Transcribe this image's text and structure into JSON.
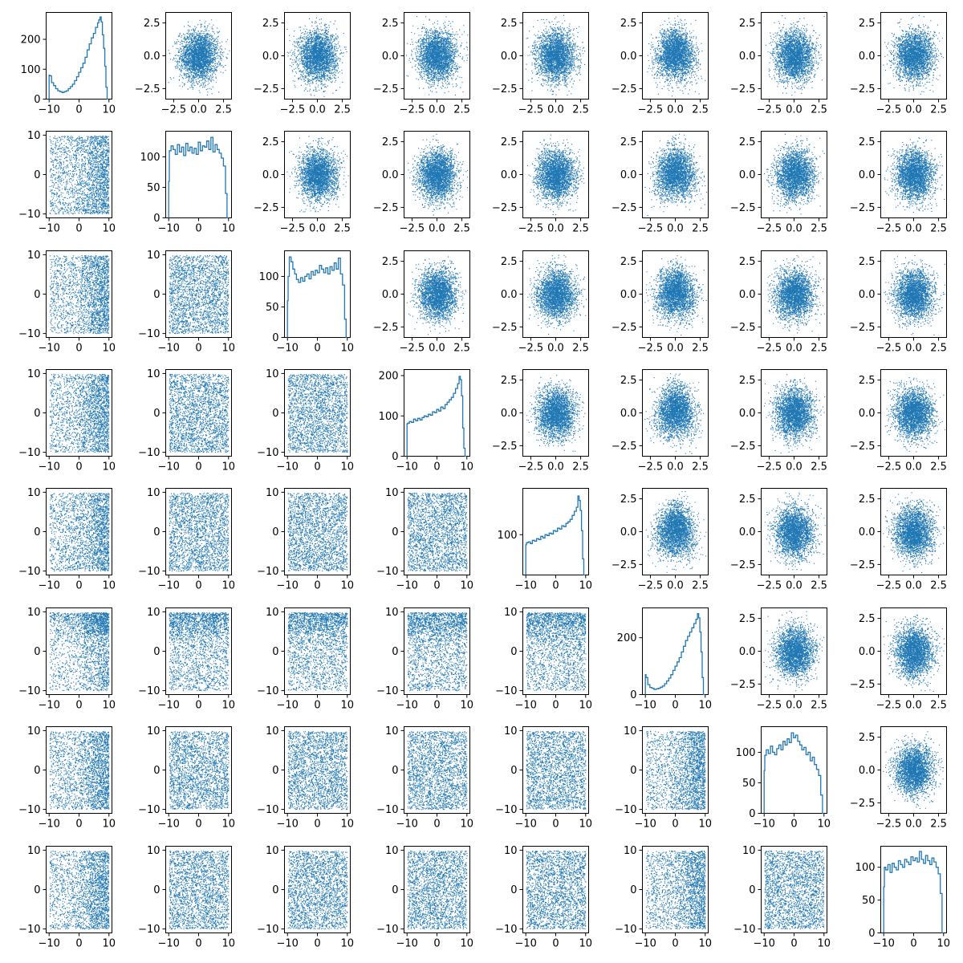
{
  "colors": {
    "series": "#1f77b4",
    "axes": "#000000",
    "background": "#ffffff"
  },
  "chart_data": {
    "type": "pair-grid",
    "grid": {
      "rows": 8,
      "cols": 8
    },
    "panel_types": {
      "diagonal": "histogram (step line)",
      "upper_triangle": "scatter of standard-normal draws (~10000 points each, dense point cloud)",
      "lower_triangle": "scatter of uniform draws over [-10, 10] x [-10, 10] (~10000 points each)"
    },
    "uniform_axis": {
      "range": [
        -11,
        11
      ],
      "ticks": [
        -10,
        0,
        10
      ],
      "tick_labels": [
        "−10",
        "0",
        "10"
      ]
    },
    "normal_axis": {
      "range": [
        -3.3,
        3.3
      ],
      "ticks": [
        -2.5,
        0.0,
        2.5
      ],
      "x_tick_labels": [
        "−2.5",
        "0.0",
        "2.5"
      ],
      "y_tick_labels": [
        "−2.5",
        "0.0",
        "2.5"
      ]
    },
    "diagonal_histograms": [
      {
        "panel": "0,0",
        "ylim": [
          0,
          290
        ],
        "yticks": [
          0,
          100,
          200
        ],
        "ytick_labels": [
          "0",
          "100",
          "200"
        ],
        "bins_x": [
          -9.8,
          -9.2,
          -8.5,
          -7.8,
          -7.1,
          -6.4,
          -5.7,
          -5.0,
          -4.3,
          -3.6,
          -2.9,
          -2.2,
          -1.5,
          -0.8,
          -0.1,
          0.6,
          1.3,
          2.0,
          2.7,
          3.4,
          4.1,
          4.8,
          5.5,
          6.2,
          6.6,
          7.0,
          7.4,
          7.8,
          8.2,
          8.6,
          9.0,
          9.4,
          9.8
        ],
        "counts": [
          80,
          78,
          55,
          45,
          35,
          28,
          25,
          22,
          25,
          28,
          35,
          42,
          50,
          62,
          75,
          90,
          105,
          120,
          140,
          165,
          185,
          205,
          220,
          240,
          255,
          265,
          275,
          258,
          215,
          170,
          110,
          40,
          0
        ]
      },
      {
        "panel": "1,1",
        "ylim": [
          0,
          142
        ],
        "yticks": [
          0,
          50,
          100
        ],
        "ytick_labels": [
          "0",
          "50",
          "100"
        ],
        "bins_x": [
          -9.8,
          -9.2,
          -8.5,
          -7.8,
          -7.1,
          -6.4,
          -5.7,
          -5.0,
          -4.3,
          -3.6,
          -2.9,
          -2.2,
          -1.5,
          -0.8,
          -0.1,
          0.6,
          1.3,
          2.0,
          2.7,
          3.4,
          4.1,
          4.8,
          5.5,
          6.2,
          6.9,
          7.6,
          8.3,
          9.0,
          9.5,
          9.9
        ],
        "counts": [
          60,
          110,
          118,
          112,
          104,
          120,
          108,
          116,
          102,
          122,
          110,
          116,
          106,
          114,
          104,
          124,
          110,
          118,
          116,
          126,
          112,
          132,
          108,
          120,
          112,
          106,
          98,
          85,
          40,
          0
        ]
      },
      {
        "panel": "2,2",
        "ylim": [
          0,
          142
        ],
        "yticks": [
          0,
          50,
          100
        ],
        "ytick_labels": [
          "0",
          "50",
          "100"
        ],
        "bins_x": [
          -9.8,
          -9.4,
          -8.8,
          -8.2,
          -7.6,
          -7.0,
          -6.3,
          -5.6,
          -4.9,
          -4.2,
          -3.5,
          -2.8,
          -2.1,
          -1.4,
          -0.7,
          0.0,
          0.7,
          1.4,
          2.1,
          2.8,
          3.5,
          4.2,
          4.9,
          5.6,
          6.3,
          7.0,
          7.7,
          8.4,
          9.1,
          9.6,
          9.9
        ],
        "counts": [
          60,
          100,
          132,
          124,
          112,
          104,
          95,
          90,
          98,
          92,
          100,
          104,
          96,
          108,
          102,
          110,
          106,
          118,
          112,
          106,
          114,
          104,
          116,
          110,
          122,
          112,
          130,
          104,
          86,
          30,
          0
        ]
      },
      {
        "panel": "3,3",
        "ylim": [
          0,
          215
        ],
        "yticks": [
          0,
          100,
          200
        ],
        "ytick_labels": [
          "0",
          "100",
          "200"
        ],
        "bins_x": [
          -9.8,
          -9.2,
          -8.5,
          -7.8,
          -7.1,
          -6.4,
          -5.7,
          -5.0,
          -4.3,
          -3.6,
          -2.9,
          -2.2,
          -1.5,
          -0.8,
          -0.1,
          0.6,
          1.3,
          2.0,
          2.7,
          3.4,
          4.1,
          4.8,
          5.5,
          6.2,
          6.9,
          7.4,
          7.8,
          8.2,
          8.6,
          9.0,
          9.4,
          9.9
        ],
        "counts": [
          80,
          82,
          86,
          84,
          92,
          88,
          94,
          90,
          96,
          100,
          98,
          104,
          102,
          110,
          108,
          116,
          112,
          122,
          118,
          128,
          134,
          140,
          146,
          156,
          168,
          180,
          198,
          190,
          150,
          70,
          20,
          0
        ]
      },
      {
        "panel": "4,4",
        "ylim": [
          0,
          215
        ],
        "yticks": [
          100
        ],
        "ytick_labels": [
          "100"
        ],
        "bins_x": [
          -9.8,
          -9.2,
          -8.5,
          -7.8,
          -7.1,
          -6.4,
          -5.7,
          -5.0,
          -4.3,
          -3.6,
          -2.9,
          -2.2,
          -1.5,
          -0.8,
          -0.1,
          0.6,
          1.3,
          2.0,
          2.7,
          3.4,
          4.1,
          4.8,
          5.5,
          6.2,
          6.9,
          7.4,
          7.8,
          8.2,
          8.6,
          9.0,
          9.4,
          9.9
        ],
        "counts": [
          75,
          80,
          82,
          78,
          86,
          84,
          90,
          88,
          96,
          92,
          100,
          98,
          104,
          102,
          110,
          108,
          116,
          114,
          122,
          120,
          128,
          132,
          138,
          148,
          158,
          168,
          196,
          185,
          160,
          110,
          40,
          0
        ]
      },
      {
        "panel": "5,5",
        "ylim": [
          0,
          305
        ],
        "yticks": [
          0,
          200
        ],
        "ytick_labels": [
          "0",
          "200"
        ],
        "bins_x": [
          -9.8,
          -9.2,
          -8.5,
          -7.8,
          -7.1,
          -6.4,
          -5.7,
          -5.0,
          -4.3,
          -3.6,
          -2.9,
          -2.2,
          -1.5,
          -0.8,
          -0.1,
          0.6,
          1.3,
          2.0,
          2.7,
          3.4,
          4.1,
          4.8,
          5.5,
          6.2,
          6.9,
          7.4,
          7.8,
          8.2,
          8.6,
          9.0,
          9.4,
          9.9
        ],
        "counts": [
          70,
          60,
          35,
          25,
          22,
          18,
          20,
          22,
          26,
          30,
          38,
          48,
          58,
          70,
          85,
          100,
          115,
          130,
          150,
          170,
          190,
          205,
          220,
          235,
          250,
          265,
          285,
          270,
          220,
          150,
          60,
          0
        ]
      },
      {
        "panel": "6,6",
        "ylim": [
          0,
          142
        ],
        "yticks": [
          0,
          50,
          100
        ],
        "ytick_labels": [
          "0",
          "50",
          "100"
        ],
        "bins_x": [
          -9.8,
          -9.3,
          -8.6,
          -7.9,
          -7.2,
          -6.5,
          -5.8,
          -5.1,
          -4.4,
          -3.7,
          -3.0,
          -2.3,
          -1.6,
          -0.9,
          -0.2,
          0.5,
          1.2,
          1.9,
          2.6,
          3.3,
          4.0,
          4.7,
          5.4,
          6.1,
          6.8,
          7.5,
          8.2,
          8.9,
          9.5,
          9.9
        ],
        "counts": [
          70,
          95,
          104,
          98,
          110,
          100,
          96,
          106,
          112,
          104,
          118,
          112,
          122,
          116,
          132,
          124,
          128,
          118,
          112,
          104,
          108,
          96,
          100,
          86,
          92,
          80,
          72,
          62,
          30,
          0
        ]
      },
      {
        "panel": "7,7",
        "ylim": [
          0,
          132
        ],
        "yticks": [
          0,
          50,
          100
        ],
        "ytick_labels": [
          "0",
          "50",
          "100"
        ],
        "bins_x": [
          -9.8,
          -9.3,
          -8.6,
          -7.9,
          -7.2,
          -6.5,
          -5.8,
          -5.1,
          -4.4,
          -3.7,
          -3.0,
          -2.3,
          -1.6,
          -0.9,
          -0.2,
          0.5,
          1.2,
          1.9,
          2.6,
          3.3,
          4.0,
          4.7,
          5.4,
          6.1,
          6.8,
          7.5,
          8.2,
          8.9,
          9.5,
          9.9
        ],
        "counts": [
          70,
          100,
          96,
          104,
          92,
          106,
          100,
          96,
          110,
          104,
          100,
          112,
          108,
          104,
          116,
          110,
          114,
          108,
          124,
          112,
          106,
          118,
          110,
          104,
          114,
          108,
          100,
          90,
          60,
          0
        ]
      }
    ]
  }
}
